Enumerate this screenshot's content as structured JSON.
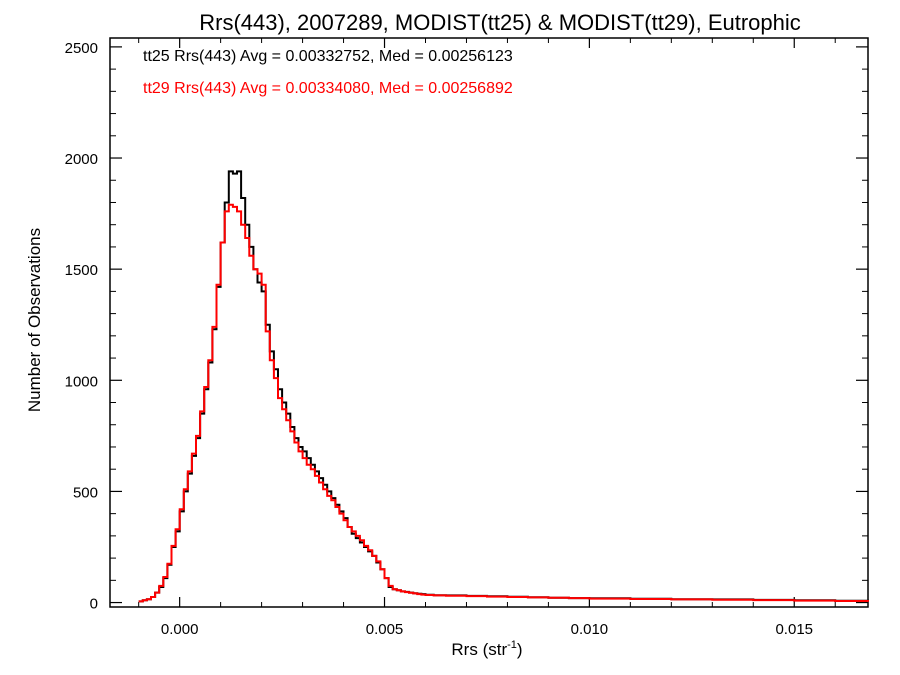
{
  "chart_data": {
    "type": "line",
    "subtype": "step-histogram",
    "title": "Rrs(443), 2007289, MODIST(tt25) & MODIST(tt29), Eutrophic",
    "xlabel_main": "Rrs (str",
    "xlabel_sup": "-1",
    "xlabel_close": ")",
    "ylabel": "Number of Observations",
    "xlim": [
      -0.0017,
      0.0168
    ],
    "ylim": [
      -20,
      2540
    ],
    "x_ticks": [
      0.0,
      0.005,
      0.01,
      0.015
    ],
    "x_tick_labels": [
      "0.000",
      "0.005",
      "0.010",
      "0.015"
    ],
    "y_ticks": [
      0,
      500,
      1000,
      1500,
      2000,
      2500
    ],
    "y_tick_labels": [
      "0",
      "500",
      "1000",
      "1500",
      "2000",
      "2500"
    ],
    "grid": false,
    "legend_position": "top-left",
    "series": [
      {
        "name": "tt25",
        "legend": "tt25 Rrs(443) Avg = 0.00332752, Med = 0.00256123",
        "color": "#000000",
        "x": [
          -0.001,
          -0.0009,
          -0.0008,
          -0.0007,
          -0.0006,
          -0.0005,
          -0.0004,
          -0.0003,
          -0.0002,
          -0.0001,
          0.0,
          0.0001,
          0.0002,
          0.0003,
          0.0004,
          0.0005,
          0.0006,
          0.0007,
          0.0008,
          0.0009,
          0.001,
          0.0011,
          0.0012,
          0.0013,
          0.0014,
          0.0015,
          0.0016,
          0.0017,
          0.0018,
          0.0019,
          0.002,
          0.0021,
          0.0022,
          0.0023,
          0.0024,
          0.0025,
          0.0026,
          0.0027,
          0.0028,
          0.0029,
          0.003,
          0.0031,
          0.0032,
          0.0033,
          0.0034,
          0.0035,
          0.0036,
          0.0037,
          0.0038,
          0.0039,
          0.004,
          0.0041,
          0.0042,
          0.0043,
          0.0044,
          0.0045,
          0.0046,
          0.0047,
          0.0048,
          0.0049,
          0.005,
          0.0051,
          0.0052,
          0.0053,
          0.0054,
          0.0055,
          0.0056,
          0.0057,
          0.0058,
          0.0059,
          0.006,
          0.0062,
          0.0065,
          0.007,
          0.0075,
          0.008,
          0.0085,
          0.009,
          0.0095,
          0.01,
          0.011,
          0.012,
          0.013,
          0.014,
          0.015,
          0.016,
          0.0168
        ],
        "y": [
          5,
          10,
          15,
          25,
          45,
          70,
          110,
          170,
          250,
          320,
          410,
          500,
          580,
          660,
          740,
          850,
          960,
          1080,
          1230,
          1420,
          1620,
          1800,
          1940,
          1930,
          1940,
          1820,
          1700,
          1600,
          1500,
          1440,
          1400,
          1250,
          1130,
          1050,
          960,
          900,
          850,
          790,
          740,
          700,
          680,
          650,
          620,
          590,
          560,
          530,
          500,
          470,
          440,
          410,
          380,
          340,
          310,
          290,
          270,
          250,
          230,
          210,
          180,
          150,
          110,
          70,
          60,
          55,
          50,
          48,
          45,
          42,
          40,
          38,
          35,
          33,
          32,
          30,
          28,
          26,
          24,
          22,
          20,
          19,
          17,
          15,
          14,
          12,
          10,
          8,
          5
        ]
      },
      {
        "name": "tt29",
        "legend": "tt29 Rrs(443) Avg = 0.00334080, Med = 0.00256892",
        "color": "#ff0000",
        "x": [
          -0.001,
          -0.0009,
          -0.0008,
          -0.0007,
          -0.0006,
          -0.0005,
          -0.0004,
          -0.0003,
          -0.0002,
          -0.0001,
          0.0,
          0.0001,
          0.0002,
          0.0003,
          0.0004,
          0.0005,
          0.0006,
          0.0007,
          0.0008,
          0.0009,
          0.001,
          0.0011,
          0.0012,
          0.0013,
          0.0014,
          0.0015,
          0.0016,
          0.0017,
          0.0018,
          0.0019,
          0.002,
          0.0021,
          0.0022,
          0.0023,
          0.0024,
          0.0025,
          0.0026,
          0.0027,
          0.0028,
          0.0029,
          0.003,
          0.0031,
          0.0032,
          0.0033,
          0.0034,
          0.0035,
          0.0036,
          0.0037,
          0.0038,
          0.0039,
          0.004,
          0.0041,
          0.0042,
          0.0043,
          0.0044,
          0.0045,
          0.0046,
          0.0047,
          0.0048,
          0.0049,
          0.005,
          0.0051,
          0.0052,
          0.0053,
          0.0054,
          0.0055,
          0.0056,
          0.0057,
          0.0058,
          0.0059,
          0.006,
          0.0062,
          0.0065,
          0.007,
          0.0075,
          0.008,
          0.0085,
          0.009,
          0.0095,
          0.01,
          0.011,
          0.012,
          0.013,
          0.014,
          0.015,
          0.016,
          0.0168
        ],
        "y": [
          5,
          10,
          15,
          25,
          45,
          75,
          115,
          175,
          255,
          330,
          420,
          510,
          590,
          670,
          750,
          860,
          970,
          1090,
          1240,
          1430,
          1620,
          1760,
          1790,
          1780,
          1760,
          1700,
          1640,
          1560,
          1500,
          1480,
          1430,
          1220,
          1090,
          1010,
          920,
          870,
          820,
          770,
          720,
          680,
          650,
          620,
          600,
          570,
          540,
          510,
          480,
          460,
          430,
          400,
          370,
          340,
          320,
          300,
          280,
          255,
          235,
          210,
          185,
          150,
          110,
          75,
          60,
          55,
          50,
          47,
          44,
          41,
          38,
          36,
          34,
          32,
          31,
          29,
          27,
          25,
          23,
          22,
          20,
          18,
          16,
          14,
          13,
          11,
          9,
          7,
          4
        ]
      }
    ]
  }
}
